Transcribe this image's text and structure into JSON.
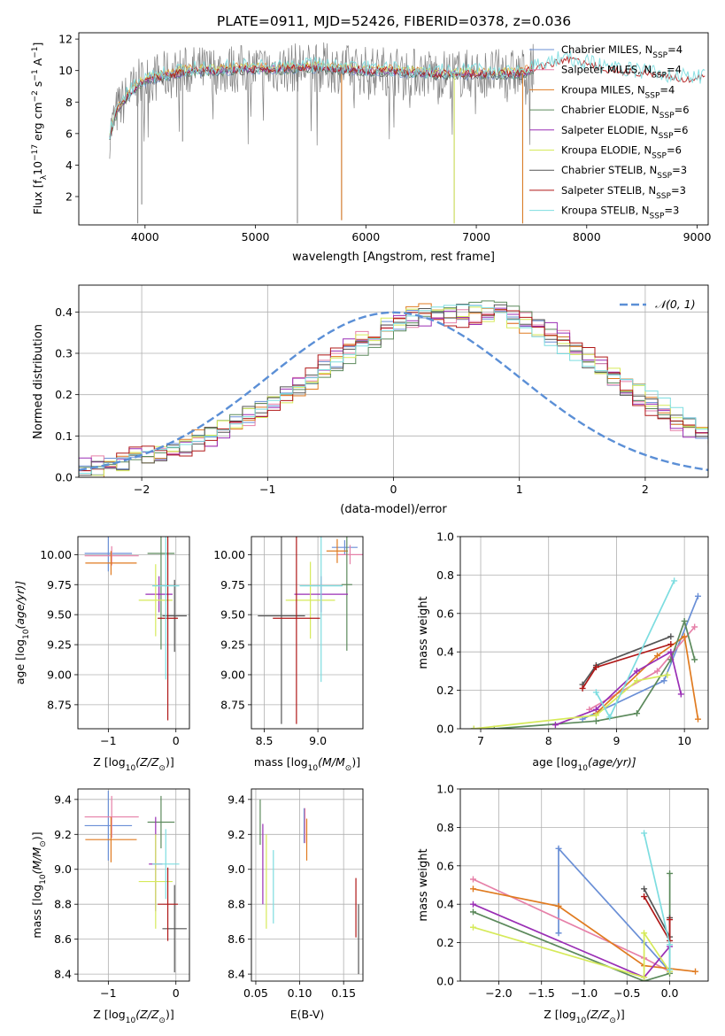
{
  "figure": {
    "title": "PLATE=0911, MJD=52426, FIBERID=0378, z=0.036"
  },
  "colors": {
    "Chabrier MILES": "#6a8fd6",
    "Salpeter MILES": "#e680a8",
    "Kroupa MILES": "#e07b20",
    "Chabrier ELODIE": "#5c8a5c",
    "Salpeter ELODIE": "#9a2fb5",
    "Kroupa ELODIE": "#d6ea5a",
    "Chabrier STELIB": "#555555",
    "Salpeter STELIB": "#b01818",
    "Kroupa STELIB": "#7ddde0"
  },
  "chart_data": [
    {
      "id": "spectrum",
      "type": "line",
      "xlabel": "wavelength [Angstrom, rest frame]",
      "ylabel_pre": "Flux [f",
      "ylabel_sub": "λ",
      "ylabel_mid": "10",
      "ylabel_sup1": "−17",
      "ylabel_post": " erg cm",
      "ylabel_sup2": "−2",
      "ylabel_post2": " s",
      "ylabel_sup3": "−1",
      "ylabel_post3": " A",
      "ylabel_sup4": "−1",
      "ylabel_end": "]",
      "xlim": [
        3400,
        9100
      ],
      "ylim": [
        0.2,
        12.4
      ],
      "xticks": [
        4000,
        5000,
        6000,
        7000,
        8000,
        9000
      ],
      "yticks": [
        2,
        4,
        6,
        8,
        10,
        12
      ],
      "legend_position": "top-right",
      "legend": [
        {
          "name": "Chabrier MILES",
          "nssp": "4"
        },
        {
          "name": "Salpeter MILES",
          "nssp": "4"
        },
        {
          "name": "Kroupa MILES",
          "nssp": "4"
        },
        {
          "name": "Chabrier ELODIE",
          "nssp": "6"
        },
        {
          "name": "Salpeter ELODIE",
          "nssp": "6"
        },
        {
          "name": "Kroupa ELODIE",
          "nssp": "6"
        },
        {
          "name": "Chabrier STELIB",
          "nssp": "3"
        },
        {
          "name": "Salpeter STELIB",
          "nssp": "3"
        },
        {
          "name": "Kroupa STELIB",
          "nssp": "3"
        }
      ],
      "nssp_label": "N",
      "nssp_sub": "SSP",
      "data_envelope": {
        "x": [
          3680,
          3750,
          3850,
          3950,
          4050,
          4200,
          4400,
          4600,
          4800,
          5000,
          5200,
          5400,
          5600,
          5800,
          6000,
          6200,
          6400,
          6600,
          6800,
          7000,
          7200,
          7400,
          7600,
          7800,
          8000,
          8200,
          8400,
          8600,
          8800,
          9000
        ],
        "y": [
          6.0,
          7.5,
          8.5,
          9.2,
          9.5,
          9.7,
          10.0,
          10.0,
          10.1,
          10.1,
          10.1,
          10.2,
          10.2,
          10.1,
          10.0,
          10.0,
          9.9,
          9.8,
          9.8,
          9.8,
          9.8,
          9.8,
          10.3,
          10.7,
          10.4,
          10.0,
          9.9,
          9.7,
          9.5,
          9.5
        ]
      },
      "absorption_dips": [
        {
          "x": 3934,
          "y": 0.3
        },
        {
          "x": 3970,
          "y": 1.5
        },
        {
          "x": 4340,
          "y": 5.5
        },
        {
          "x": 5380,
          "y": 0.3
        },
        {
          "x": 5780,
          "y": 0.5
        },
        {
          "x": 6800,
          "y": 0.3
        },
        {
          "x": 7420,
          "y": 0.3
        }
      ]
    },
    {
      "id": "residuals",
      "type": "bar",
      "xlabel": "(data-model)/error",
      "ylabel": "Normed distribution",
      "xlim": [
        -2.5,
        2.5
      ],
      "ylim": [
        0,
        0.465
      ],
      "xticks": [
        -2,
        -1,
        0,
        1,
        2
      ],
      "yticks": [
        0.0,
        0.1,
        0.2,
        0.3,
        0.4
      ],
      "legend_position": "top-right",
      "gauss_label": "𝒩(0, 1)",
      "gauss_color": "#5b8fd6",
      "bin_width": 0.1,
      "bin_start": -2.5,
      "histogram_base": [
        0.018,
        0.022,
        0.028,
        0.035,
        0.041,
        0.048,
        0.055,
        0.065,
        0.076,
        0.088,
        0.103,
        0.12,
        0.134,
        0.15,
        0.166,
        0.185,
        0.2,
        0.218,
        0.24,
        0.262,
        0.284,
        0.305,
        0.327,
        0.345,
        0.362,
        0.376,
        0.388,
        0.395,
        0.398,
        0.398,
        0.398,
        0.398,
        0.398,
        0.394,
        0.386,
        0.376,
        0.362,
        0.345,
        0.326,
        0.306,
        0.284,
        0.263,
        0.24,
        0.219,
        0.198,
        0.177,
        0.16,
        0.142,
        0.126,
        0.111,
        0.097,
        0.084,
        0.072,
        0.062,
        0.053,
        0.045,
        0.038,
        0.032,
        0.027,
        0.023
      ],
      "series_offsets": [
        0.0,
        0.012,
        -0.01,
        0.015,
        -0.014,
        0.008,
        -0.006,
        0.018,
        -0.016
      ]
    },
    {
      "id": "age-vs-Z",
      "type": "scatter",
      "xlabel": "Z [log",
      "xlabel_sub": "10",
      "xlabel_rest": "(Z/Z",
      "xlabel_sun": "⊙",
      "xlabel_end": ")]",
      "ylabel": "age  [log",
      "ylabel_sub": "10",
      "ylabel_rest": "(age/yr)]",
      "xlim": [
        -1.45,
        0.2
      ],
      "ylim": [
        8.55,
        10.15
      ],
      "xticks": [
        -1,
        0
      ],
      "yticks": [
        8.75,
        9.0,
        9.25,
        9.5,
        9.75,
        10.0
      ],
      "points": [
        {
          "name": "Chabrier MILES",
          "x": -1.0,
          "y": 10.01,
          "xerr": 0.35,
          "yerr": 0.15
        },
        {
          "name": "Salpeter MILES",
          "x": -0.95,
          "y": 9.99,
          "xerr": 0.4,
          "yerr": 0.08
        },
        {
          "name": "Kroupa MILES",
          "x": -0.96,
          "y": 9.93,
          "xerr": 0.38,
          "yerr": 0.1
        },
        {
          "name": "Chabrier ELODIE",
          "x": -0.22,
          "y": 10.01,
          "xerr": 0.2,
          "yerr": 0.8
        },
        {
          "name": "Salpeter ELODIE",
          "x": -0.25,
          "y": 9.67,
          "xerr": 0.2,
          "yerr": 0.15
        },
        {
          "name": "Kroupa ELODIE",
          "x": -0.3,
          "y": 9.62,
          "xerr": 0.25,
          "yerr": 0.3
        },
        {
          "name": "Chabrier STELIB",
          "x": -0.02,
          "y": 9.49,
          "xerr": 0.18,
          "yerr": 0.3
        },
        {
          "name": "Salpeter STELIB",
          "x": -0.12,
          "y": 9.47,
          "xerr": 0.15,
          "yerr": 0.85
        },
        {
          "name": "Kroupa STELIB",
          "x": -0.15,
          "y": 9.74,
          "xerr": 0.2,
          "yerr": 0.78
        }
      ]
    },
    {
      "id": "age-vs-mass",
      "type": "scatter",
      "xlabel": "mass [log",
      "xlabel_sub": "10",
      "xlabel_rest": "(M/M",
      "xlabel_sun": "⊙",
      "xlabel_end": ")]",
      "xlim": [
        8.38,
        9.42
      ],
      "ylim": [
        8.55,
        10.15
      ],
      "xticks": [
        8.5,
        9.0
      ],
      "yticks": [
        8.75,
        9.0,
        9.25,
        9.5,
        9.75,
        10.0
      ],
      "points": [
        {
          "name": "Chabrier MILES",
          "x": 9.25,
          "y": 10.06,
          "xerr": 0.12,
          "yerr": 0.06
        },
        {
          "name": "Salpeter MILES",
          "x": 9.3,
          "y": 10.0,
          "xerr": 0.12,
          "yerr": 0.08
        },
        {
          "name": "Kroupa MILES",
          "x": 9.18,
          "y": 10.03,
          "xerr": 0.1,
          "yerr": 0.1
        },
        {
          "name": "Chabrier ELODIE",
          "x": 9.27,
          "y": 9.75,
          "xerr": 0.05,
          "yerr": 0.55
        },
        {
          "name": "Salpeter ELODIE",
          "x": 9.03,
          "y": 9.67,
          "xerr": 0.25,
          "yerr": 0.15
        },
        {
          "name": "Kroupa ELODIE",
          "x": 8.93,
          "y": 9.62,
          "xerr": 0.23,
          "yerr": 0.32
        },
        {
          "name": "Chabrier STELIB",
          "x": 8.66,
          "y": 9.49,
          "xerr": 0.22,
          "yerr": 0.9
        },
        {
          "name": "Salpeter STELIB",
          "x": 8.8,
          "y": 9.47,
          "xerr": 0.22,
          "yerr": 0.88
        },
        {
          "name": "Kroupa STELIB",
          "x": 9.03,
          "y": 9.74,
          "xerr": 0.2,
          "yerr": 0.8
        }
      ]
    },
    {
      "id": "weight-vs-age",
      "type": "line",
      "xlabel": "age  [log",
      "xlabel_sub": "10",
      "xlabel_rest": "(age/yr)]",
      "ylabel": "mass weight",
      "xlim": [
        6.7,
        10.35
      ],
      "ylim": [
        0,
        1.0
      ],
      "xticks": [
        7,
        8,
        9,
        10
      ],
      "yticks": [
        0.0,
        0.2,
        0.4,
        0.6,
        0.8,
        1.0
      ],
      "series": [
        {
          "name": "Chabrier MILES",
          "x": [
            8.5,
            9.7,
            10.2
          ],
          "y": [
            0.05,
            0.25,
            0.69
          ]
        },
        {
          "name": "Salpeter MILES",
          "x": [
            8.6,
            9.6,
            10.15
          ],
          "y": [
            0.1,
            0.3,
            0.53
          ]
        },
        {
          "name": "Kroupa MILES",
          "x": [
            8.7,
            9.6,
            10.0,
            10.2
          ],
          "y": [
            0.08,
            0.38,
            0.48,
            0.05
          ]
        },
        {
          "name": "Chabrier ELODIE",
          "x": [
            6.9,
            7.2,
            8.7,
            9.3,
            9.8,
            10.0,
            10.15
          ],
          "y": [
            0.0,
            0.0,
            0.04,
            0.08,
            0.36,
            0.56,
            0.36
          ]
        },
        {
          "name": "Salpeter ELODIE",
          "x": [
            8.1,
            8.7,
            9.3,
            9.8,
            9.95
          ],
          "y": [
            0.02,
            0.1,
            0.3,
            0.4,
            0.18
          ]
        },
        {
          "name": "Kroupa ELODIE",
          "x": [
            6.9,
            8.7,
            9.3,
            9.75
          ],
          "y": [
            0.0,
            0.07,
            0.25,
            0.28
          ]
        },
        {
          "name": "Chabrier STELIB",
          "x": [
            8.5,
            8.7,
            9.8
          ],
          "y": [
            0.23,
            0.33,
            0.48
          ]
        },
        {
          "name": "Salpeter STELIB",
          "x": [
            8.5,
            8.7,
            9.8
          ],
          "y": [
            0.21,
            0.32,
            0.44
          ]
        },
        {
          "name": "Kroupa STELIB",
          "x": [
            8.7,
            8.9,
            9.85
          ],
          "y": [
            0.19,
            0.06,
            0.77
          ]
        }
      ]
    },
    {
      "id": "mass-vs-Z",
      "type": "scatter",
      "xlabel": "Z [log",
      "xlabel_sub": "10",
      "xlabel_rest": "(Z/Z",
      "xlabel_sun": "⊙",
      "xlabel_end": ")]",
      "ylabel": "mass [log",
      "ylabel_sub": "10",
      "ylabel_rest": "(M/M",
      "ylabel_sun": "⊙",
      "ylabel_end": ")]",
      "xlim": [
        -1.45,
        0.2
      ],
      "ylim": [
        8.36,
        9.46
      ],
      "xticks": [
        -1,
        0
      ],
      "yticks": [
        8.4,
        8.6,
        8.8,
        9.0,
        9.2,
        9.4
      ],
      "points": [
        {
          "name": "Chabrier MILES",
          "x": -1.0,
          "y": 9.25,
          "xerr": 0.35,
          "yerr": 0.2
        },
        {
          "name": "Salpeter MILES",
          "x": -0.95,
          "y": 9.3,
          "xerr": 0.4,
          "yerr": 0.12
        },
        {
          "name": "Kroupa MILES",
          "x": -0.96,
          "y": 9.17,
          "xerr": 0.38,
          "yerr": 0.13
        },
        {
          "name": "Chabrier ELODIE",
          "x": -0.22,
          "y": 9.27,
          "xerr": 0.2,
          "yerr": 0.15
        },
        {
          "name": "Salpeter ELODIE",
          "x": -0.3,
          "y": 9.03,
          "xerr": 0.1,
          "yerr": 0.27
        },
        {
          "name": "Kroupa ELODIE",
          "x": -0.3,
          "y": 8.93,
          "xerr": 0.25,
          "yerr": 0.27
        },
        {
          "name": "Chabrier STELIB",
          "x": -0.02,
          "y": 8.66,
          "xerr": 0.18,
          "yerr": 0.25
        },
        {
          "name": "Salpeter STELIB",
          "x": -0.12,
          "y": 8.8,
          "xerr": 0.15,
          "yerr": 0.21
        },
        {
          "name": "Kroupa STELIB",
          "x": -0.15,
          "y": 9.03,
          "xerr": 0.2,
          "yerr": 0.2
        }
      ]
    },
    {
      "id": "mass-vs-ebv",
      "type": "scatter",
      "xlabel": "E(B-V)",
      "xlim": [
        0.045,
        0.172
      ],
      "ylim": [
        8.36,
        9.46
      ],
      "xticks": [
        0.05,
        0.1,
        0.15
      ],
      "yticks": [
        8.4,
        8.6,
        8.8,
        9.0,
        9.2,
        9.4
      ],
      "points": [
        {
          "name": "Chabrier MILES",
          "x": 0.105,
          "y": 9.25,
          "xerr": 0,
          "yerr": 0.1
        },
        {
          "name": "Salpeter MILES",
          "x": 0.106,
          "y": 9.25,
          "xerr": 0,
          "yerr": 0.1
        },
        {
          "name": "Kroupa MILES",
          "x": 0.108,
          "y": 9.17,
          "xerr": 0,
          "yerr": 0.12
        },
        {
          "name": "Chabrier ELODIE",
          "x": 0.055,
          "y": 9.27,
          "xerr": 0,
          "yerr": 0.13
        },
        {
          "name": "Salpeter ELODIE",
          "x": 0.058,
          "y": 9.03,
          "xerr": 0,
          "yerr": 0.23
        },
        {
          "name": "Kroupa ELODIE",
          "x": 0.062,
          "y": 8.93,
          "xerr": 0,
          "yerr": 0.27
        },
        {
          "name": "Chabrier STELIB",
          "x": 0.167,
          "y": 8.6,
          "xerr": 0,
          "yerr": 0.2
        },
        {
          "name": "Salpeter STELIB",
          "x": 0.164,
          "y": 8.78,
          "xerr": 0,
          "yerr": 0.17
        },
        {
          "name": "Kroupa STELIB",
          "x": 0.07,
          "y": 8.9,
          "xerr": 0,
          "yerr": 0.21
        }
      ]
    },
    {
      "id": "weight-vs-Z",
      "type": "line",
      "xlabel": "Z [log",
      "xlabel_sub": "10",
      "xlabel_rest": "(Z/Z",
      "xlabel_sun": "⊙",
      "xlabel_end": ")]",
      "ylabel": "mass weight",
      "xlim": [
        -2.45,
        0.45
      ],
      "ylim": [
        0,
        1.0
      ],
      "xticks": [
        -2.0,
        -1.5,
        -1.0,
        -0.5,
        0.0
      ],
      "yticks": [
        0.0,
        0.2,
        0.4,
        0.6,
        0.8,
        1.0
      ],
      "series": [
        {
          "name": "Chabrier MILES",
          "x": [
            -1.3,
            -1.3,
            -0.3,
            0.0
          ],
          "y": [
            0.25,
            0.69,
            0.2,
            0.05
          ]
        },
        {
          "name": "Salpeter MILES",
          "x": [
            -2.3,
            -0.3,
            0.0
          ],
          "y": [
            0.53,
            0.12,
            0.05
          ]
        },
        {
          "name": "Kroupa MILES",
          "x": [
            -2.3,
            -1.3,
            -0.3,
            0.3
          ],
          "y": [
            0.48,
            0.39,
            0.08,
            0.05
          ]
        },
        {
          "name": "Chabrier ELODIE",
          "x": [
            -2.3,
            -0.3,
            0.0,
            0.0
          ],
          "y": [
            0.36,
            0.0,
            0.04,
            0.56
          ]
        },
        {
          "name": "Salpeter ELODIE",
          "x": [
            -2.3,
            -0.3,
            0.0
          ],
          "y": [
            0.4,
            0.02,
            0.18
          ]
        },
        {
          "name": "Kroupa ELODIE",
          "x": [
            -2.3,
            -0.3,
            -0.3,
            0.0
          ],
          "y": [
            0.28,
            0.02,
            0.25,
            0.05
          ]
        },
        {
          "name": "Chabrier STELIB",
          "x": [
            -0.3,
            0.0,
            0.0
          ],
          "y": [
            0.48,
            0.23,
            0.33
          ]
        },
        {
          "name": "Salpeter STELIB",
          "x": [
            -0.3,
            0.0,
            0.0
          ],
          "y": [
            0.44,
            0.21,
            0.32
          ]
        },
        {
          "name": "Kroupa STELIB",
          "x": [
            -0.3,
            0.0,
            0.0
          ],
          "y": [
            0.77,
            0.19,
            0.06
          ]
        }
      ]
    }
  ]
}
